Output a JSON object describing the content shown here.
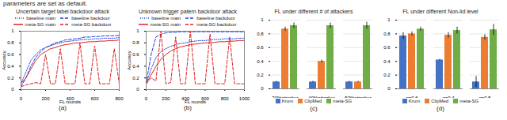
{
  "caption": "parameters are set as default.",
  "chart_data": [
    {
      "type": "line",
      "title": "Uncertain target label backdoor attack",
      "x_label": "FL rounds",
      "y_label": "Accuracy",
      "annotation": "(a)",
      "x": [
        0,
        40,
        80,
        120,
        160,
        200,
        240,
        280,
        320,
        360,
        400,
        440,
        480,
        520,
        560,
        600,
        640,
        680,
        720,
        760,
        800
      ],
      "xlim": [
        0,
        800
      ],
      "xticks": [
        0,
        200,
        400,
        600,
        800
      ],
      "ylim": [
        0,
        1
      ],
      "yticks": [
        0,
        0.2,
        0.4,
        0.6,
        0.8,
        1
      ],
      "legend": "top",
      "series": [
        {
          "name": "baseline main",
          "color": "#1f3fd6",
          "line_style": "dotted",
          "values": [
            0.1,
            0.3,
            0.5,
            0.6,
            0.68,
            0.72,
            0.75,
            0.78,
            0.8,
            0.82,
            0.83,
            0.84,
            0.85,
            0.86,
            0.86,
            0.87,
            0.87,
            0.88,
            0.88,
            0.88,
            0.89
          ]
        },
        {
          "name": "baseline backdoor",
          "color": "#1f3fd6",
          "line_style": "dashed",
          "values": [
            0.05,
            0.2,
            0.4,
            0.55,
            0.65,
            0.72,
            0.76,
            0.8,
            0.82,
            0.85,
            0.86,
            0.87,
            0.88,
            0.9,
            0.9,
            0.91,
            0.91,
            0.92,
            0.92,
            0.92,
            0.93
          ]
        },
        {
          "name": "meta-SG main",
          "color": "#e02020",
          "line_style": "solid",
          "values": [
            0.1,
            0.2,
            0.35,
            0.5,
            0.6,
            0.65,
            0.7,
            0.72,
            0.75,
            0.77,
            0.78,
            0.8,
            0.8,
            0.81,
            0.82,
            0.82,
            0.83,
            0.83,
            0.84,
            0.84,
            0.85
          ]
        },
        {
          "name": "meta-SG backdoor",
          "color": "#e02020",
          "line_style": "dashed",
          "values": [
            0.05,
            0.08,
            0.1,
            0.12,
            0.1,
            0.6,
            0.1,
            0.1,
            0.7,
            0.1,
            0.1,
            0.1,
            0.8,
            0.1,
            0.1,
            0.75,
            0.1,
            0.1,
            0.1,
            0.7,
            0.1
          ]
        }
      ]
    },
    {
      "type": "line",
      "title": "Unknown trigger patern backdoor attack",
      "x_label": "FL rounds",
      "y_label": "Accuracy",
      "annotation": "(b)",
      "x": [
        0,
        50,
        100,
        150,
        200,
        250,
        300,
        350,
        400,
        450,
        500,
        550,
        600,
        650,
        700,
        750,
        800,
        850,
        900,
        950,
        1000
      ],
      "xlim": [
        0,
        1000
      ],
      "xticks": [
        0,
        200,
        400,
        600,
        800,
        1000
      ],
      "ylim": [
        0,
        1
      ],
      "yticks": [
        0,
        0.2,
        0.4,
        0.6,
        0.8,
        1
      ],
      "legend": "top",
      "series": [
        {
          "name": "baseline main",
          "color": "#1f3fd6",
          "line_style": "dotted",
          "values": [
            0.1,
            0.35,
            0.55,
            0.65,
            0.7,
            0.74,
            0.77,
            0.79,
            0.8,
            0.82,
            0.83,
            0.84,
            0.84,
            0.85,
            0.86,
            0.86,
            0.87,
            0.87,
            0.87,
            0.88,
            0.88
          ]
        },
        {
          "name": "baseline backdoor",
          "color": "#1f3fd6",
          "line_style": "dashed",
          "values": [
            0.1,
            0.6,
            0.9,
            0.95,
            0.97,
            0.98,
            0.98,
            0.99,
            0.99,
            0.99,
            0.99,
            0.99,
            0.99,
            0.99,
            0.99,
            0.99,
            0.99,
            0.99,
            0.99,
            0.99,
            0.99
          ]
        },
        {
          "name": "meta-SG main",
          "color": "#e02020",
          "line_style": "solid",
          "values": [
            0.1,
            0.25,
            0.4,
            0.52,
            0.6,
            0.66,
            0.7,
            0.73,
            0.75,
            0.77,
            0.78,
            0.79,
            0.8,
            0.8,
            0.81,
            0.82,
            0.82,
            0.83,
            0.83,
            0.84,
            0.84
          ]
        },
        {
          "name": "meta-SG backdoor",
          "color": "#e02020",
          "line_style": "dashed",
          "values": [
            0.1,
            0.2,
            0.15,
            1,
            0.1,
            0.12,
            0.9,
            0.1,
            0.1,
            1,
            0.1,
            0.1,
            0.1,
            0.95,
            0.1,
            0.1,
            0.1,
            0.9,
            0.1,
            0.1,
            0.1
          ]
        }
      ]
    },
    {
      "type": "bar",
      "title": "FL under different # of attackers",
      "annotation": "(c)",
      "categories": [
        "30%attacker",
        "40%attacker",
        "50%attacker"
      ],
      "ylim": [
        0,
        1
      ],
      "yticks": [
        0,
        0.2,
        0.4,
        0.6,
        0.8,
        1
      ],
      "legend": "bottom",
      "series": [
        {
          "name": "Krum",
          "color": "#4472c4",
          "values": [
            0.1,
            0.1,
            0.1
          ],
          "errors": [
            0.01,
            0.01,
            0.01
          ]
        },
        {
          "name": "ClipMed",
          "color": "#ed7d31",
          "values": [
            0.87,
            0.4,
            0.1
          ],
          "errors": [
            0.03,
            0.02,
            0.01
          ]
        },
        {
          "name": "meta-SG",
          "color": "#70ad47",
          "values": [
            0.92,
            0.92,
            0.92
          ],
          "errors": [
            0.04,
            0.04,
            0.05
          ]
        }
      ]
    },
    {
      "type": "bar",
      "title": "FL under different Non-iid level",
      "annotation": "(d)",
      "categories": [
        "q=0.6",
        "q=0.4",
        "q=0.5"
      ],
      "ylim": [
        0,
        1
      ],
      "yticks": [
        0,
        0.2,
        0.4,
        0.6,
        0.8,
        1
      ],
      "legend": "bottom",
      "series": [
        {
          "name": "Krum",
          "color": "#4472c4",
          "values": [
            0.77,
            0.42,
            0.1
          ],
          "errors": [
            0.05,
            0.01,
            0.08
          ]
        },
        {
          "name": "ClipMed",
          "color": "#ed7d31",
          "values": [
            0.8,
            0.78,
            0.75
          ],
          "errors": [
            0.03,
            0.04,
            0.04
          ]
        },
        {
          "name": "meta-SG",
          "color": "#70ad47",
          "values": [
            0.87,
            0.85,
            0.86
          ],
          "errors": [
            0.03,
            0.05,
            0.08
          ]
        }
      ]
    }
  ]
}
